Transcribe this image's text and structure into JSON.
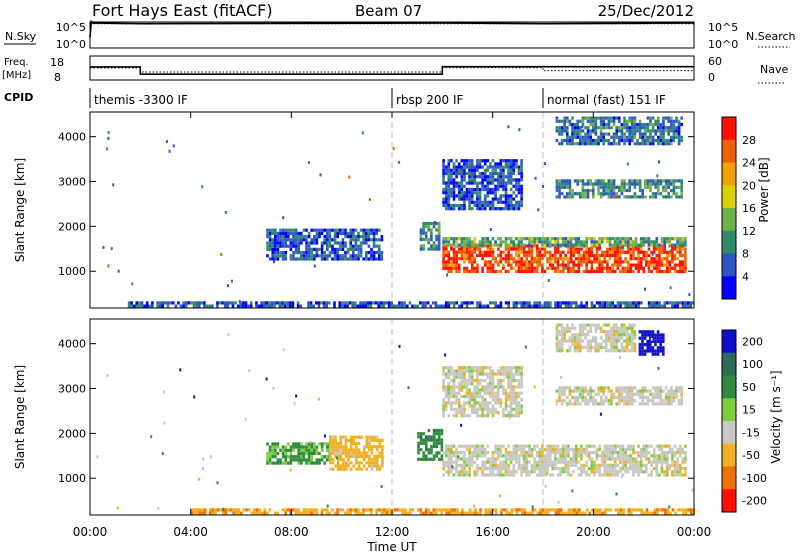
{
  "header": {
    "title": "Fort Hays East (fitACF)",
    "beam": "Beam 07",
    "date": "25/Dec/2012"
  },
  "chart_data": [
    {
      "type": "line",
      "panel": "noise",
      "left_label": "N.Sky",
      "right_label": "N.Search",
      "y_ticks_left": [
        "10^5",
        "10^0"
      ],
      "y_ticks_right": [
        "10^5",
        "10^0"
      ],
      "series": [
        {
          "name": "N.Sky",
          "style": "solid",
          "x": [
            0.0,
            0.05,
            0.1,
            2.0,
            14.0,
            18.0,
            24.0
          ],
          "y": [
            100,
            200000,
            100000,
            70000,
            100000,
            70000,
            100000
          ]
        },
        {
          "name": "N.Search",
          "style": "dotted",
          "x": [
            0.0,
            0.1,
            24.0
          ],
          "y": [
            60000,
            70000,
            70000
          ]
        }
      ]
    },
    {
      "type": "line",
      "panel": "frequency",
      "left_label": "Freq. [MHz]",
      "right_label": "Nave",
      "ylim_left": [
        8,
        18
      ],
      "y_ticks_left": [
        "18",
        "8"
      ],
      "ylim_right": [
        0,
        60
      ],
      "y_ticks_right": [
        "60",
        "0"
      ],
      "series": [
        {
          "name": "Freq.",
          "style": "solid",
          "x": [
            0.0,
            2.0,
            2.0,
            14.0,
            14.0,
            24.0
          ],
          "y": [
            13.5,
            13.5,
            10.2,
            10.2,
            13.6,
            13.6
          ]
        },
        {
          "name": "Nave",
          "style": "dotted",
          "x": [
            0.0,
            2.0,
            2.0,
            14.0,
            14.0,
            18.0,
            18.0,
            24.0
          ],
          "y": [
            30,
            30,
            19,
            19,
            31,
            31,
            23,
            23
          ]
        }
      ]
    },
    {
      "type": "table",
      "panel": "cpid",
      "label": "CPID",
      "segments": [
        {
          "start": 0.0,
          "end": 12.0,
          "text": "themis -3300 IF"
        },
        {
          "start": 12.0,
          "end": 18.0,
          "text": "rbsp 200 IF"
        },
        {
          "start": 18.0,
          "end": 24.0,
          "text": "normal (fast) 151 IF"
        }
      ]
    },
    {
      "type": "heatmap",
      "panel": "power",
      "ylabel": "Slant Range [km]",
      "ylim": [
        180,
        4550
      ],
      "y_ticks": [
        1000,
        2000,
        3000,
        4000
      ],
      "colorbar_label": "Power [dB]",
      "colorbar_ticks": [
        4,
        8,
        12,
        16,
        20,
        24,
        28
      ],
      "colorbar_colors": [
        "#0000ff",
        "#2f55c8",
        "#2f8a6e",
        "#6fb04b",
        "#d8d000",
        "#f4a000",
        "#f06000",
        "#ff1000"
      ],
      "regions": [
        {
          "t0": 7.0,
          "t1": 11.6,
          "r0": 1250,
          "r1": 1950,
          "level": 6
        },
        {
          "t0": 13.1,
          "t1": 13.9,
          "r0": 1500,
          "r1": 2100,
          "level": 10
        },
        {
          "t0": 14.0,
          "t1": 23.7,
          "r0": 1000,
          "r1": 1600,
          "level": 28
        },
        {
          "t0": 14.0,
          "t1": 23.7,
          "r0": 1600,
          "r1": 1760,
          "level": 12
        },
        {
          "t0": 14.0,
          "t1": 17.2,
          "r0": 2400,
          "r1": 3500,
          "level": 6
        },
        {
          "t0": 18.5,
          "t1": 23.5,
          "r0": 2650,
          "r1": 3050,
          "level": 10
        },
        {
          "t0": 18.5,
          "t1": 23.5,
          "r0": 3850,
          "r1": 4450,
          "level": 8
        },
        {
          "t0": 1.5,
          "t1": 24.0,
          "r0": 200,
          "r1": 330,
          "level": 6
        }
      ]
    },
    {
      "type": "heatmap",
      "panel": "velocity",
      "ylabel": "Slant Range [km]",
      "ylim": [
        180,
        4550
      ],
      "y_ticks": [
        1000,
        2000,
        3000,
        4000
      ],
      "xlabel": "Time UT",
      "x_ticks": [
        "00:00",
        "04:00",
        "08:00",
        "12:00",
        "16:00",
        "20:00",
        "00:00"
      ],
      "colorbar_label": "Velocity [m s⁻¹]",
      "colorbar_ticks": [
        200,
        100,
        50,
        15,
        -15,
        -50,
        -100,
        -200
      ],
      "colorbar_colors": [
        "#1010c8",
        "#2f6a5a",
        "#2f8a40",
        "#80cc40",
        "#c8c8c0",
        "#f0b020",
        "#f07000",
        "#ff1000"
      ],
      "regions": [
        {
          "t0": 7.0,
          "t1": 9.5,
          "r0": 1350,
          "r1": 1800,
          "level": 40
        },
        {
          "t0": 9.5,
          "t1": 11.6,
          "r0": 1200,
          "r1": 1950,
          "level": -30
        },
        {
          "t0": 13.0,
          "t1": 14.0,
          "r0": 1400,
          "r1": 2100,
          "level": 60
        },
        {
          "t0": 14.0,
          "t1": 23.7,
          "r0": 1050,
          "r1": 1750,
          "level": 0
        },
        {
          "t0": 14.0,
          "t1": 17.2,
          "r0": 2400,
          "r1": 3500,
          "level": 0
        },
        {
          "t0": 18.5,
          "t1": 23.5,
          "r0": 2650,
          "r1": 3050,
          "level": 0
        },
        {
          "t0": 18.5,
          "t1": 21.7,
          "r0": 3850,
          "r1": 4450,
          "level": 0
        },
        {
          "t0": 21.8,
          "t1": 22.8,
          "r0": 3800,
          "r1": 4300,
          "level": 220
        },
        {
          "t0": 4.0,
          "t1": 24.0,
          "r0": 200,
          "r1": 330,
          "level": -40
        }
      ]
    }
  ]
}
